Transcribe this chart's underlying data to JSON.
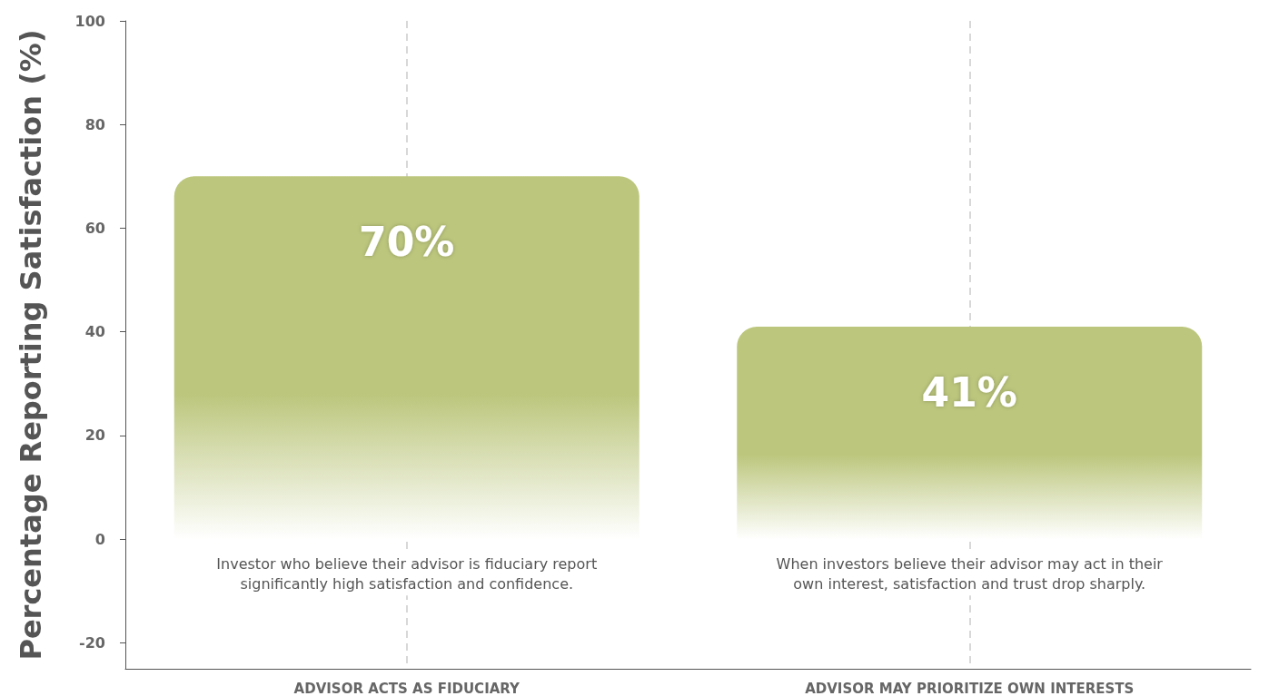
{
  "chart_data": {
    "type": "bar",
    "ylabel": "Percentage Reporting Satisfaction (%)",
    "categories": [
      "ADVISOR ACTS AS FIDUCIARY",
      "ADVISOR MAY PRIORITIZE OWN INTERESTS"
    ],
    "values": [
      70,
      41
    ],
    "color": "#bcc67c",
    "value_labels": [
      "70%",
      "41%"
    ],
    "ylim": [
      -25,
      100
    ],
    "yticks": [
      -20,
      0,
      20,
      40,
      60,
      80,
      100
    ],
    "grid": "x",
    "annotations": [
      "Investor who believe their advisor is fiduciary report\nsignificantly high satisfaction and confidence.",
      "When investors believe their advisor may act in their\nown interest, satisfaction and trust drop sharply."
    ]
  }
}
